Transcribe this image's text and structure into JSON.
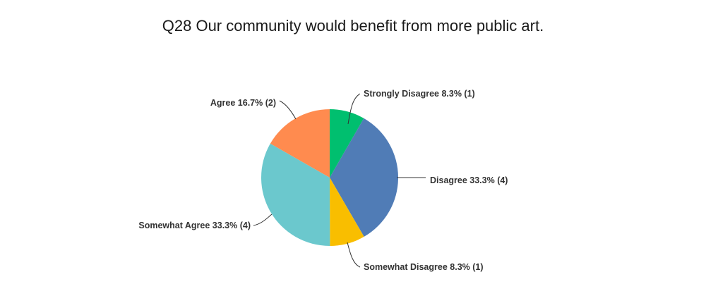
{
  "chart_data": {
    "type": "pie",
    "title": "Q28 Our community would benefit from more public art.",
    "slices": [
      {
        "name": "Strongly Disagree",
        "percent": 8.3,
        "count": 1,
        "color": "#00bf6f",
        "label": "Strongly Disagree 8.3% (1)"
      },
      {
        "name": "Disagree",
        "percent": 33.3,
        "count": 4,
        "color": "#507cb6",
        "label": "Disagree 33.3% (4)"
      },
      {
        "name": "Somewhat Disagree",
        "percent": 8.3,
        "count": 1,
        "color": "#f9be00",
        "label": "Somewhat Disagree 8.3% (1)"
      },
      {
        "name": "Somewhat Agree",
        "percent": 33.3,
        "count": 4,
        "color": "#6bc8cd",
        "label": "Somewhat Agree 33.3% (4)"
      },
      {
        "name": "Agree",
        "percent": 16.7,
        "count": 2,
        "color": "#ff8b4f",
        "label": "Agree 16.7% (2)"
      }
    ]
  }
}
